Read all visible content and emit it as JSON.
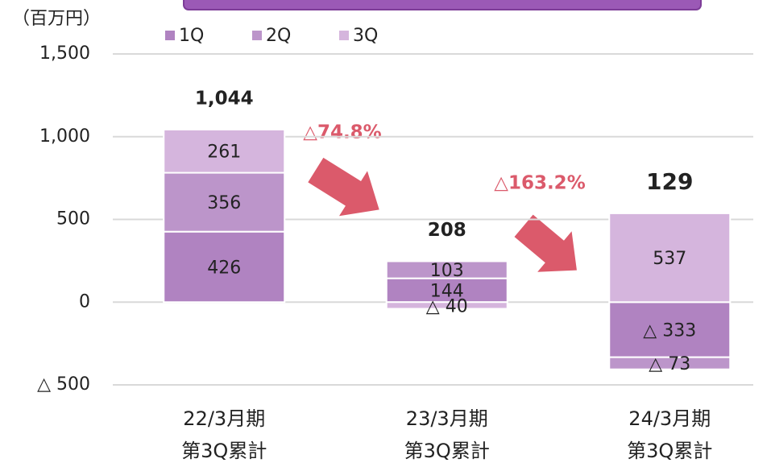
{
  "chart_data": {
    "type": "stacked_bar",
    "unit_label": "（百万円）",
    "categories": [
      "22/3月期\n第3Q累計",
      "23/3月期\n第3Q累計",
      "24/3月期\n第3Q累計"
    ],
    "series": [
      {
        "name": "1Q",
        "color": "#b083c1",
        "values": [
          426,
          144,
          -333
        ],
        "value_labels": [
          "426",
          "144",
          "△ 333"
        ]
      },
      {
        "name": "2Q",
        "color": "#bc95ca",
        "values": [
          356,
          103,
          -73
        ],
        "value_labels": [
          "356",
          "103",
          "△ 73"
        ]
      },
      {
        "name": "3Q",
        "color": "#d5b5dd",
        "values": [
          261,
          -40,
          537
        ],
        "value_labels": [
          "261",
          "△ 40",
          "537"
        ]
      }
    ],
    "totals": [
      1044,
      208,
      129
    ],
    "total_labels": [
      "1,044",
      "208",
      "129"
    ],
    "annotations": [
      "△74.8%",
      "△163.2%"
    ],
    "ylim": [
      -500,
      1500
    ],
    "yticks": [
      {
        "value": -500,
        "label": "△ 500"
      },
      0,
      500,
      {
        "value": 1000,
        "label": "1,000"
      },
      {
        "value": 1500,
        "label": "1,500"
      }
    ],
    "grid": true
  }
}
